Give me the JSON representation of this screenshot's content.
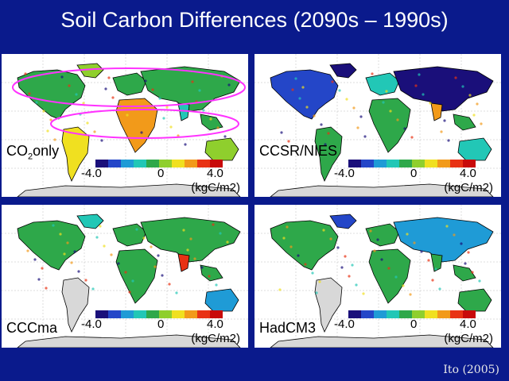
{
  "title": "Soil Carbon Differences (2090s – 1990s)",
  "credit": "Ito (2005)",
  "colorbar": {
    "min": "-4.0",
    "mid": "0",
    "max": "4.0",
    "unit": "(kgC/m2)",
    "colors": [
      "#1a0f7a",
      "#2446c8",
      "#1f9bd6",
      "#22c7b6",
      "#2ea84a",
      "#8fcf2d",
      "#f0e020",
      "#f29a1a",
      "#e83214",
      "#c80a0a"
    ]
  },
  "panels": [
    {
      "label": "CO",
      "label_sub": "2",
      "label_suffix": "only",
      "scheme": "co2"
    },
    {
      "label": "CCSR/NIES",
      "scheme": "ccsr"
    },
    {
      "label": "CCCma",
      "scheme": "cccma"
    },
    {
      "label": "HadCM3",
      "scheme": "had"
    }
  ]
}
